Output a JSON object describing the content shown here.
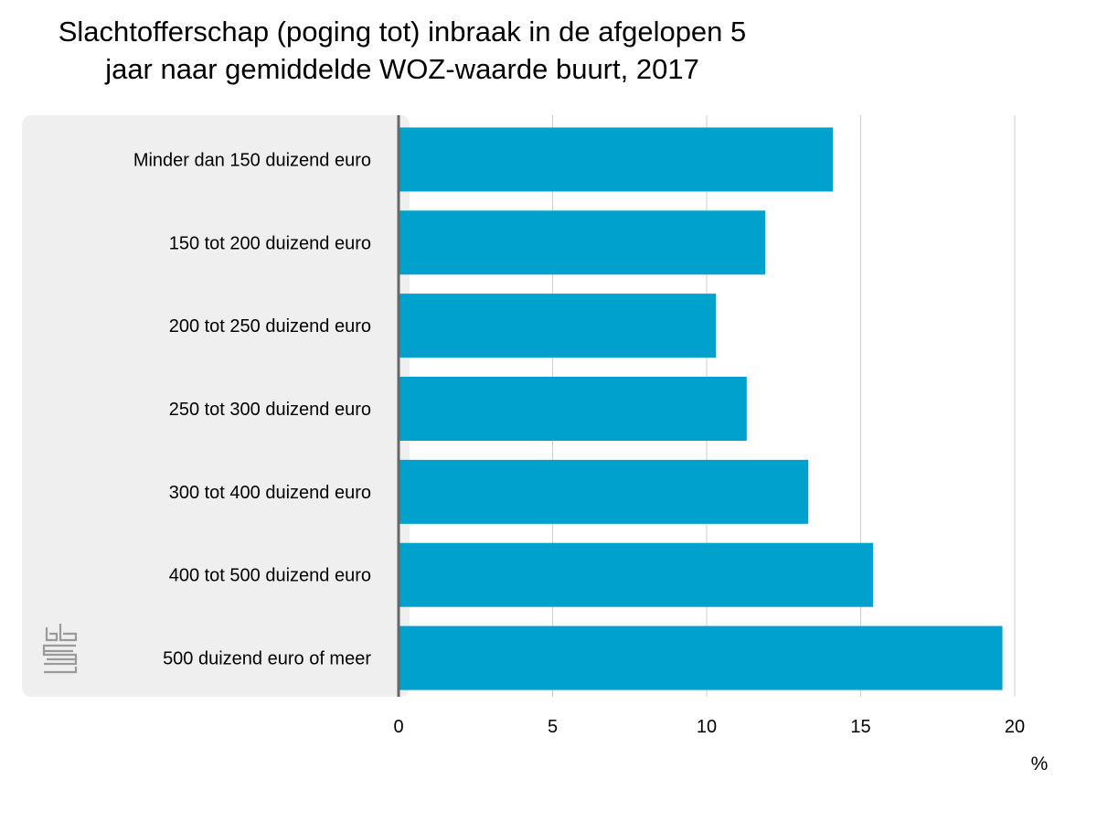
{
  "chart_data": {
    "type": "bar",
    "orientation": "horizontal",
    "title": "Slachtofferschap (poging tot) inbraak in de afgelopen 5 jaar naar gemiddelde WOZ-waarde buurt, 2017",
    "categories": [
      "Minder dan 150 duizend euro",
      "150 tot 200 duizend euro",
      "200 tot 250 duizend euro",
      "250 tot 300 duizend euro",
      "300 tot 400 duizend euro",
      "400 tot 500 duizend euro",
      "500 duizend euro of meer"
    ],
    "values": [
      14.1,
      11.9,
      10.3,
      11.3,
      13.3,
      15.4,
      19.6
    ],
    "xlim": [
      0,
      20
    ],
    "xticks": [
      0,
      5,
      10,
      15,
      20
    ],
    "xunit": "%",
    "grid": true,
    "bar_color": "#00a1cd",
    "panel_color": "#efefef",
    "logo": "cbs"
  }
}
